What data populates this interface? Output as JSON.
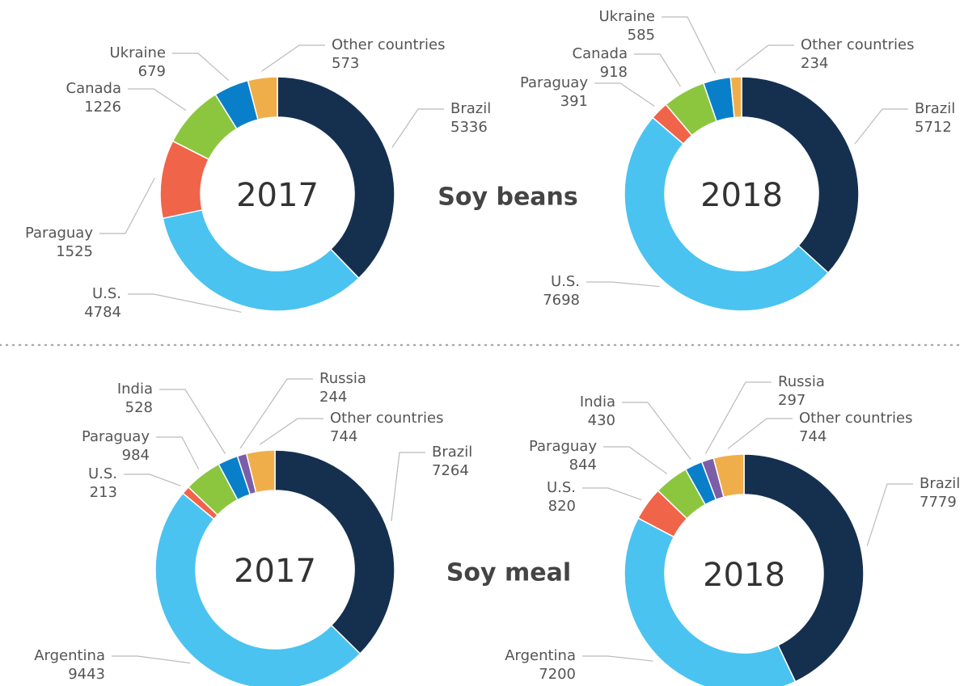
{
  "row_labels": [
    "Soy beans",
    "Soy meal"
  ],
  "chart_data": [
    {
      "type": "donut",
      "title": "2017",
      "categories": [
        "Brazil",
        "U.S.",
        "Paraguay",
        "Canada",
        "Ukraine",
        "Other countries"
      ],
      "values": [
        5336,
        4784,
        1525,
        1226,
        679,
        573
      ],
      "colors": [
        "#15304f",
        "#4ac3f0",
        "#f0644a",
        "#8cc63f",
        "#0a7fc9",
        "#f0ae4a"
      ]
    },
    {
      "type": "donut",
      "title": "2018",
      "categories": [
        "Brazil",
        "U.S.",
        "Paraguay",
        "Canada",
        "Ukraine",
        "Other countries"
      ],
      "values": [
        5712,
        7698,
        391,
        918,
        585,
        234
      ],
      "colors": [
        "#15304f",
        "#4ac3f0",
        "#f0644a",
        "#8cc63f",
        "#0a7fc9",
        "#f0ae4a"
      ]
    },
    {
      "type": "donut",
      "title": "2017",
      "categories": [
        "Brazil",
        "Argentina",
        "U.S.",
        "Paraguay",
        "India",
        "Russia",
        "Other countries"
      ],
      "values": [
        7264,
        9443,
        213,
        984,
        528,
        244,
        744
      ],
      "colors": [
        "#15304f",
        "#4ac3f0",
        "#f0644a",
        "#8cc63f",
        "#0a7fc9",
        "#7b5ea7",
        "#f0ae4a"
      ]
    },
    {
      "type": "donut",
      "title": "2018",
      "categories": [
        "Brazil",
        "Argentina",
        "U.S.",
        "Paraguay",
        "India",
        "Russia",
        "Other countries"
      ],
      "values": [
        7779,
        7200,
        820,
        844,
        430,
        297,
        744
      ],
      "colors": [
        "#15304f",
        "#4ac3f0",
        "#f0644a",
        "#8cc63f",
        "#0a7fc9",
        "#7b5ea7",
        "#f0ae4a"
      ]
    }
  ]
}
